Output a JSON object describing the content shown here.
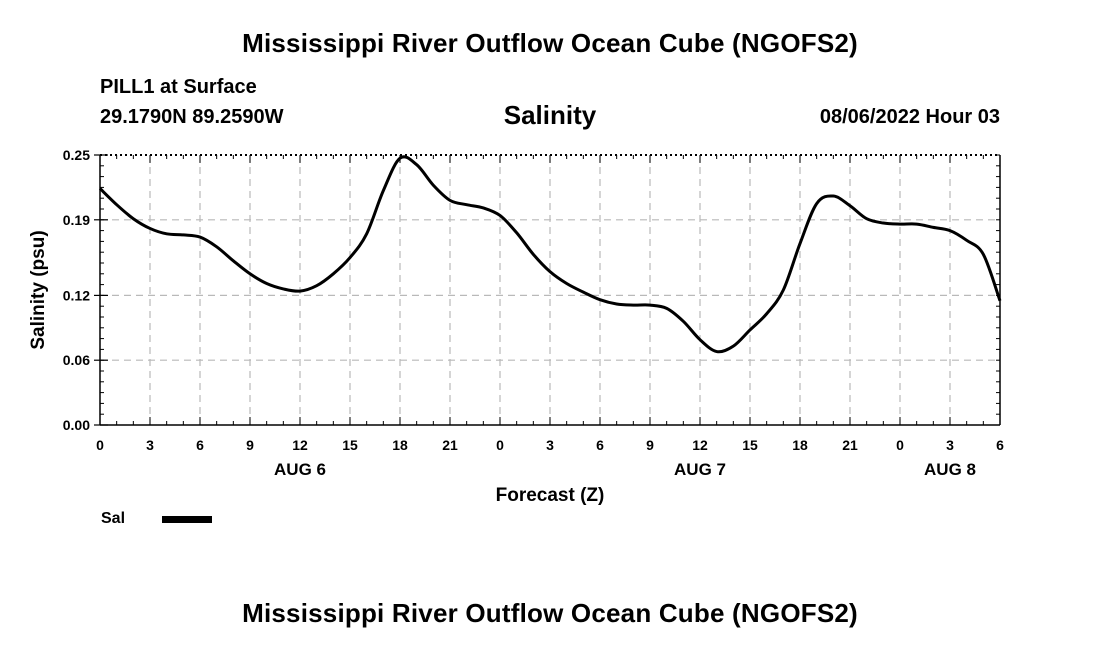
{
  "header": {
    "main_title": "Mississippi River Outflow Ocean Cube (NGOFS2)",
    "station": "PILL1 at Surface",
    "coordinates": "29.1790N  89.2590W",
    "datetime": "08/06/2022 Hour 03"
  },
  "footer": {
    "title": "Mississippi River Outflow Ocean Cube (NGOFS2)"
  },
  "chart_data": {
    "type": "line",
    "title": "Salinity",
    "xlabel": "Forecast (Z)",
    "ylabel": "Salinity (psu)",
    "ylim": [
      0,
      0.25
    ],
    "xlim": [
      0,
      54
    ],
    "grid": true,
    "legend": {
      "position": "bottom-left",
      "entries": [
        "Sal"
      ]
    },
    "y_ticks": [
      0,
      0.06,
      0.12,
      0.19,
      0.25
    ],
    "y_tick_labels": [
      "0.00",
      "0.06",
      "0.12",
      "0.19",
      "0.25"
    ],
    "x_ticks": [
      0,
      3,
      6,
      9,
      12,
      15,
      18,
      21,
      24,
      27,
      30,
      33,
      36,
      39,
      42,
      45,
      48,
      51,
      54
    ],
    "x_tick_labels": [
      "0",
      "3",
      "6",
      "9",
      "12",
      "15",
      "18",
      "21",
      "0",
      "3",
      "6",
      "9",
      "12",
      "15",
      "18",
      "21",
      "0",
      "3",
      "6"
    ],
    "day_labels": [
      {
        "x": 12,
        "label": "AUG 6"
      },
      {
        "x": 36,
        "label": "AUG 7"
      },
      {
        "x": 51,
        "label": "AUG 8"
      }
    ],
    "series": [
      {
        "name": "Sal",
        "color": "#000000",
        "x": [
          0,
          1,
          2,
          3,
          4,
          5,
          6,
          7,
          8,
          9,
          10,
          11,
          12,
          13,
          14,
          15,
          16,
          17,
          18,
          19,
          20,
          21,
          22,
          23,
          24,
          25,
          26,
          27,
          28,
          29,
          30,
          31,
          32,
          33,
          34,
          35,
          36,
          37,
          38,
          39,
          40,
          41,
          42,
          43,
          44,
          45,
          46,
          47,
          48,
          49,
          50,
          51,
          52,
          53,
          54
        ],
        "values": [
          0.219,
          0.204,
          0.191,
          0.182,
          0.177,
          0.176,
          0.174,
          0.165,
          0.152,
          0.14,
          0.131,
          0.126,
          0.124,
          0.129,
          0.14,
          0.155,
          0.177,
          0.217,
          0.247,
          0.241,
          0.222,
          0.208,
          0.204,
          0.201,
          0.194,
          0.178,
          0.158,
          0.142,
          0.131,
          0.123,
          0.116,
          0.112,
          0.111,
          0.111,
          0.108,
          0.096,
          0.079,
          0.068,
          0.073,
          0.088,
          0.103,
          0.125,
          0.168,
          0.205,
          0.212,
          0.203,
          0.191,
          0.187,
          0.186,
          0.186,
          0.183,
          0.18,
          0.171,
          0.158,
          0.115
        ]
      }
    ]
  }
}
